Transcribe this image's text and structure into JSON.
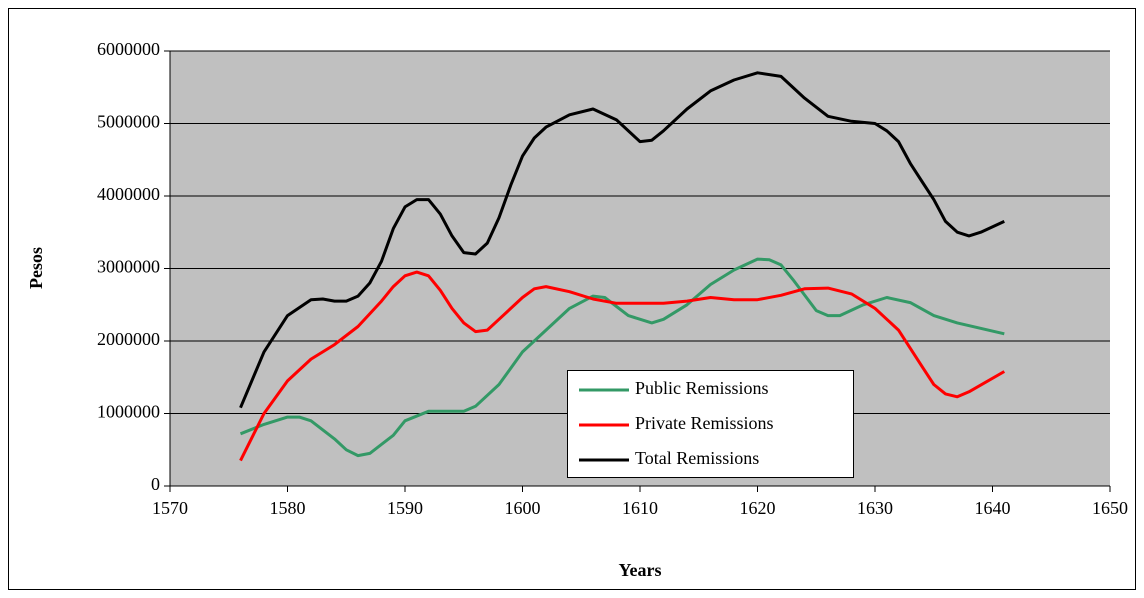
{
  "chart_data": {
    "type": "line",
    "x_label": "Years",
    "y_label": "Pesos",
    "xlim": [
      1570,
      1650
    ],
    "xticks": [
      1570,
      1580,
      1590,
      1600,
      1610,
      1620,
      1630,
      1640,
      1650
    ],
    "ylim": [
      0,
      6000000
    ],
    "yticks": [
      0,
      1000000,
      2000000,
      3000000,
      4000000,
      5000000,
      6000000
    ],
    "grid": true,
    "legend": "bottom-center",
    "series": [
      {
        "name": "Public Remissions",
        "color": "#339966",
        "x": [
          1576,
          1578,
          1580,
          1581,
          1582,
          1584,
          1585,
          1586,
          1587,
          1589,
          1590,
          1592,
          1595,
          1596,
          1598,
          1600,
          1602,
          1604,
          1606,
          1607,
          1609,
          1611,
          1612,
          1614,
          1616,
          1618,
          1620,
          1621,
          1622,
          1623,
          1625,
          1626,
          1627,
          1629,
          1631,
          1633,
          1635,
          1637,
          1641
        ],
        "values": [
          720000,
          850000,
          950000,
          950000,
          900000,
          650000,
          500000,
          420000,
          450000,
          700000,
          900000,
          1030000,
          1030000,
          1100000,
          1400000,
          1850000,
          2150000,
          2450000,
          2620000,
          2600000,
          2350000,
          2250000,
          2300000,
          2500000,
          2780000,
          2980000,
          3130000,
          3120000,
          3050000,
          2850000,
          2420000,
          2350000,
          2350000,
          2500000,
          2600000,
          2530000,
          2350000,
          2250000,
          2100000
        ]
      },
      {
        "name": "Private Remissions",
        "color": "#ff0000",
        "x": [
          1576,
          1578,
          1580,
          1582,
          1584,
          1586,
          1588,
          1589,
          1590,
          1591,
          1592,
          1593,
          1594,
          1595,
          1596,
          1597,
          1598,
          1600,
          1601,
          1602,
          1604,
          1606,
          1608,
          1610,
          1612,
          1614,
          1616,
          1618,
          1620,
          1622,
          1624,
          1626,
          1628,
          1630,
          1632,
          1634,
          1635,
          1636,
          1637,
          1638,
          1641
        ],
        "values": [
          350000,
          1000000,
          1450000,
          1750000,
          1950000,
          2200000,
          2550000,
          2750000,
          2900000,
          2950000,
          2900000,
          2700000,
          2450000,
          2250000,
          2130000,
          2150000,
          2300000,
          2600000,
          2720000,
          2750000,
          2680000,
          2580000,
          2520000,
          2520000,
          2520000,
          2550000,
          2600000,
          2570000,
          2570000,
          2630000,
          2720000,
          2730000,
          2650000,
          2450000,
          2150000,
          1650000,
          1400000,
          1270000,
          1230000,
          1300000,
          1580000
        ]
      },
      {
        "name": "Total Remissions",
        "color": "#000000",
        "x": [
          1576,
          1578,
          1580,
          1582,
          1583,
          1584,
          1585,
          1586,
          1587,
          1588,
          1589,
          1590,
          1591,
          1592,
          1593,
          1594,
          1595,
          1596,
          1597,
          1598,
          1599,
          1600,
          1601,
          1602,
          1604,
          1606,
          1608,
          1610,
          1611,
          1612,
          1614,
          1616,
          1618,
          1620,
          1622,
          1624,
          1626,
          1628,
          1630,
          1631,
          1632,
          1633,
          1634,
          1635,
          1636,
          1637,
          1638,
          1639,
          1641
        ],
        "values": [
          1080000,
          1850000,
          2350000,
          2570000,
          2580000,
          2550000,
          2550000,
          2620000,
          2800000,
          3100000,
          3550000,
          3850000,
          3950000,
          3950000,
          3750000,
          3450000,
          3220000,
          3200000,
          3350000,
          3700000,
          4150000,
          4550000,
          4800000,
          4950000,
          5120000,
          5200000,
          5050000,
          4750000,
          4770000,
          4900000,
          5200000,
          5450000,
          5600000,
          5700000,
          5650000,
          5350000,
          5100000,
          5030000,
          5000000,
          4900000,
          4750000,
          4450000,
          4200000,
          3950000,
          3650000,
          3500000,
          3450000,
          3500000,
          3650000
        ]
      }
    ]
  }
}
